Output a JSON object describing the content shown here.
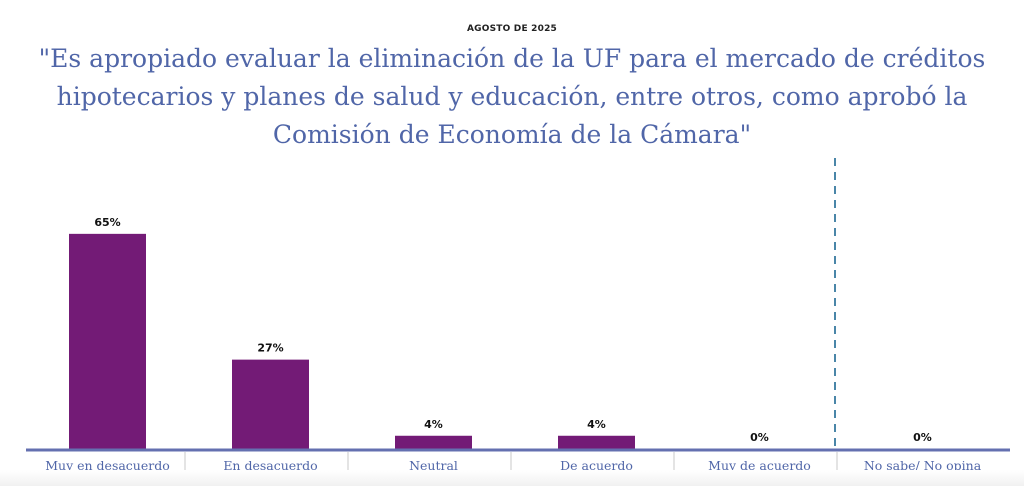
{
  "header": {
    "date": "AGOSTO DE 2025",
    "question": "\"Es apropiado evaluar la eliminación de la UF para el mercado de créditos hipotecarios y planes de salud y educación, entre otros, como aprobó la Comisión de Economía de la Cámara\""
  },
  "colors": {
    "bar": "#731b76",
    "title": "#5066a8",
    "axis": "#6470b0",
    "separator": "#4a86a8"
  },
  "chart_data": {
    "type": "bar",
    "categories": [
      "Muy en desacuerdo",
      "En desacuerdo",
      "Neutral",
      "De acuerdo",
      "Muy de acuerdo",
      "No sabe/ No opina"
    ],
    "values": [
      65,
      27,
      4,
      4,
      0,
      0
    ],
    "value_labels": [
      "65%",
      "27%",
      "4%",
      "4%",
      "0%",
      "0%"
    ],
    "title": "\"Es apropiado evaluar la eliminación de la UF para el mercado de créditos hipotecarios y planes de salud y educación, entre otros, como aprobó la Comisión de Economía de la Cámara\"",
    "subtitle": "AGOSTO DE 2025",
    "ylim": [
      0,
      100
    ],
    "grid": false,
    "legend": "none",
    "separator_before_category": "No sabe/ No opina"
  }
}
